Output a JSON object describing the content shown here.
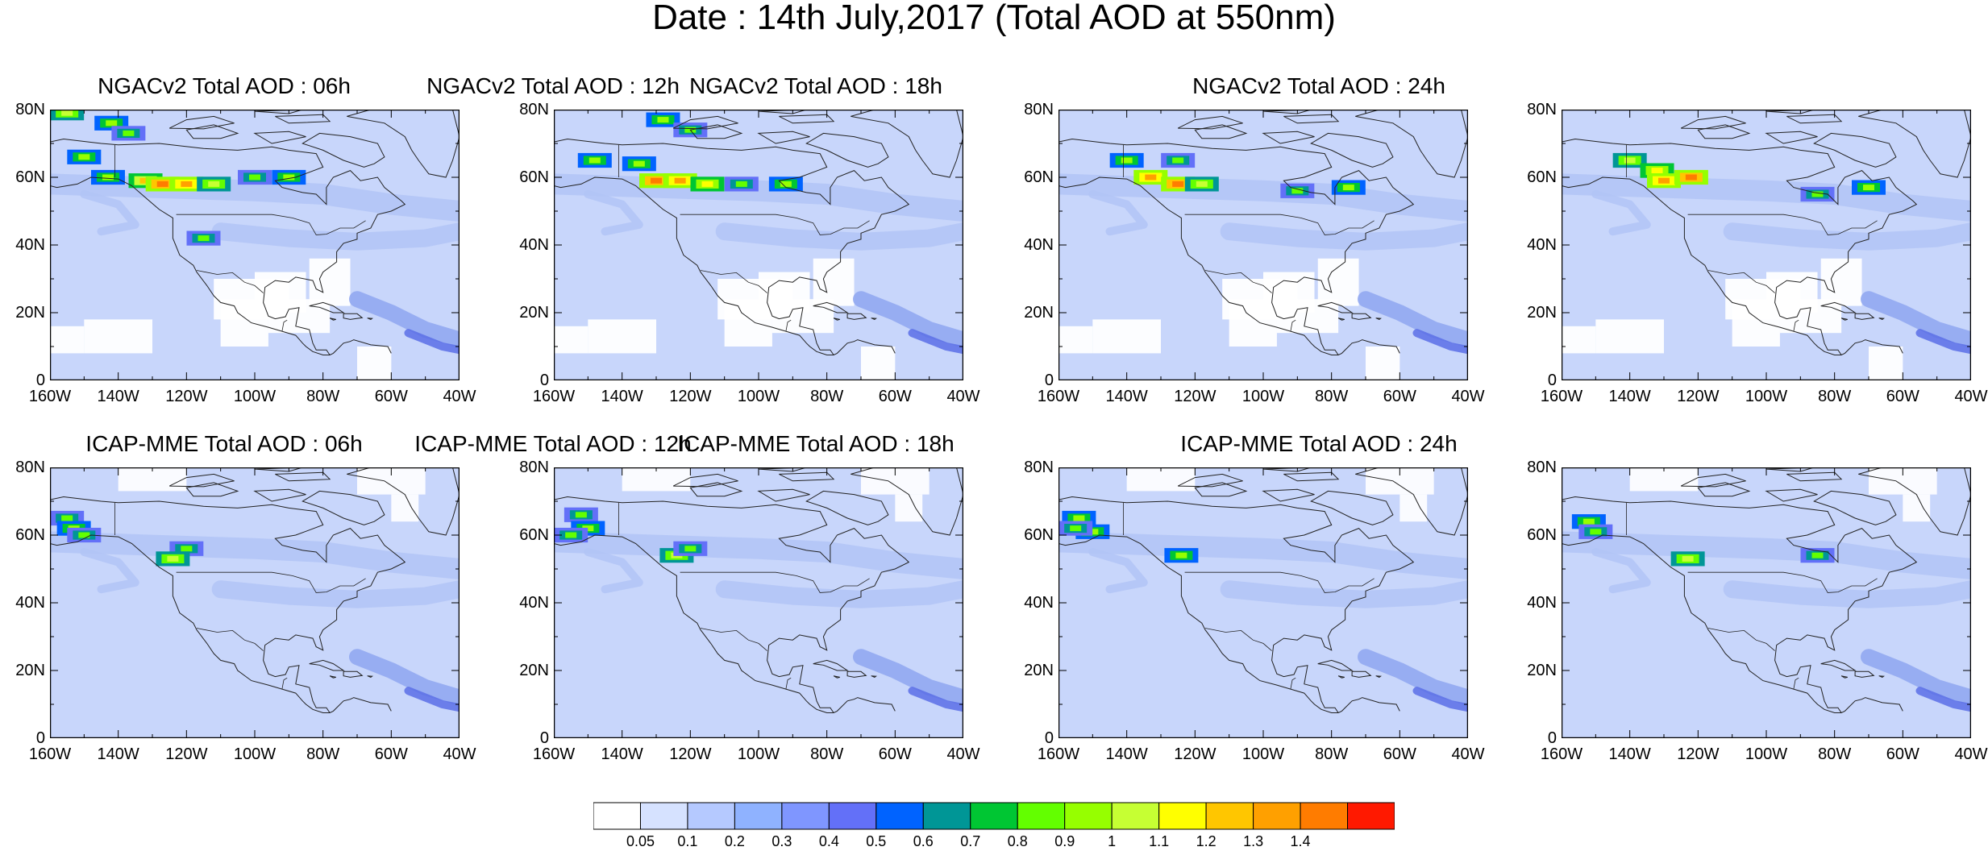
{
  "title": "Date : 14th July,2017 (Total AOD at 550nm)",
  "panels": [
    {
      "title": "NGACv2 Total AOD : 06h",
      "model": "NGACv2",
      "hour": "06h",
      "hotspots": [
        {
          "lon": -155,
          "lat": 79,
          "v": 1.0
        },
        {
          "lon": -142,
          "lat": 76,
          "v": 0.9
        },
        {
          "lon": -137,
          "lat": 73,
          "v": 0.8
        },
        {
          "lon": -150,
          "lat": 66,
          "v": 0.9
        },
        {
          "lon": -143,
          "lat": 60,
          "v": 0.9
        },
        {
          "lon": -132,
          "lat": 59,
          "v": 1.2
        },
        {
          "lon": -127,
          "lat": 58,
          "v": 1.4
        },
        {
          "lon": -120,
          "lat": 58,
          "v": 1.3
        },
        {
          "lon": -112,
          "lat": 58,
          "v": 1.0
        },
        {
          "lon": -100,
          "lat": 60,
          "v": 0.8
        },
        {
          "lon": -90,
          "lat": 60,
          "v": 0.9
        },
        {
          "lon": -115,
          "lat": 42,
          "v": 0.8
        }
      ]
    },
    {
      "title": "NGACv2 Total AOD : 12h",
      "model": "NGACv2",
      "hour": "12h",
      "hotspots": [
        {
          "lon": -128,
          "lat": 77,
          "v": 0.9
        },
        {
          "lon": -120,
          "lat": 74,
          "v": 0.8
        },
        {
          "lon": -148,
          "lat": 65,
          "v": 0.9
        },
        {
          "lon": -135,
          "lat": 64,
          "v": 0.9
        },
        {
          "lon": -130,
          "lat": 59,
          "v": 1.4
        },
        {
          "lon": -123,
          "lat": 59,
          "v": 1.3
        },
        {
          "lon": -115,
          "lat": 58,
          "v": 1.1
        },
        {
          "lon": -105,
          "lat": 58,
          "v": 0.8
        },
        {
          "lon": -92,
          "lat": 58,
          "v": 0.9
        }
      ]
    },
    {
      "title": "NGACv2 Total AOD : 18h",
      "model": "NGACv2",
      "hour": "18h",
      "hotspots": [
        {
          "lon": -140,
          "lat": 65,
          "v": 0.9
        },
        {
          "lon": -125,
          "lat": 65,
          "v": 0.8
        },
        {
          "lon": -133,
          "lat": 60,
          "v": 1.3
        },
        {
          "lon": -125,
          "lat": 58,
          "v": 1.4
        },
        {
          "lon": -118,
          "lat": 58,
          "v": 1.0
        },
        {
          "lon": -90,
          "lat": 56,
          "v": 0.8
        },
        {
          "lon": -75,
          "lat": 57,
          "v": 0.9
        }
      ]
    },
    {
      "title": "NGACv2 Total AOD : 24h",
      "model": "NGACv2",
      "hour": "24h",
      "hotspots": [
        {
          "lon": -140,
          "lat": 65,
          "v": 1.0
        },
        {
          "lon": -132,
          "lat": 62,
          "v": 1.1
        },
        {
          "lon": -130,
          "lat": 59,
          "v": 1.3
        },
        {
          "lon": -122,
          "lat": 60,
          "v": 1.4
        },
        {
          "lon": -85,
          "lat": 55,
          "v": 0.8
        },
        {
          "lon": -70,
          "lat": 57,
          "v": 0.9
        }
      ]
    },
    {
      "title": "ICAP-MME Total AOD : 06h",
      "model": "ICAP-MME",
      "hour": "06h",
      "hotspots": [
        {
          "lon": -155,
          "lat": 65,
          "v": 0.8
        },
        {
          "lon": -153,
          "lat": 62,
          "v": 0.9
        },
        {
          "lon": -150,
          "lat": 60,
          "v": 0.8
        },
        {
          "lon": -120,
          "lat": 56,
          "v": 0.8
        },
        {
          "lon": -124,
          "lat": 53,
          "v": 1.0
        }
      ]
    },
    {
      "title": "ICAP-MME Total AOD : 12h",
      "model": "ICAP-MME",
      "hour": "12h",
      "hotspots": [
        {
          "lon": -152,
          "lat": 66,
          "v": 0.8
        },
        {
          "lon": -150,
          "lat": 62,
          "v": 0.9
        },
        {
          "lon": -155,
          "lat": 60,
          "v": 0.8
        },
        {
          "lon": -124,
          "lat": 54,
          "v": 1.0
        },
        {
          "lon": -120,
          "lat": 56,
          "v": 0.8
        }
      ]
    },
    {
      "title": "ICAP-MME Total AOD : 18h",
      "model": "ICAP-MME",
      "hour": "18h",
      "hotspots": [
        {
          "lon": -154,
          "lat": 65,
          "v": 0.9
        },
        {
          "lon": -150,
          "lat": 61,
          "v": 0.9
        },
        {
          "lon": -155,
          "lat": 62,
          "v": 0.8
        },
        {
          "lon": -124,
          "lat": 54,
          "v": 0.9
        }
      ]
    },
    {
      "title": "ICAP-MME Total AOD : 24h",
      "model": "ICAP-MME",
      "hour": "24h",
      "hotspots": [
        {
          "lon": -152,
          "lat": 64,
          "v": 0.9
        },
        {
          "lon": -150,
          "lat": 61,
          "v": 0.8
        },
        {
          "lon": -123,
          "lat": 53,
          "v": 1.0
        },
        {
          "lon": -85,
          "lat": 54,
          "v": 0.8
        }
      ]
    }
  ],
  "x_ticks": [
    "160W",
    "140W",
    "120W",
    "100W",
    "80W",
    "60W",
    "40W"
  ],
  "y_ticks": [
    "0",
    "20N",
    "40N",
    "60N",
    "80N"
  ],
  "colorbar": {
    "labels": [
      "0.05",
      "0.1",
      "0.2",
      "0.3",
      "0.4",
      "0.5",
      "0.6",
      "0.7",
      "0.8",
      "0.9",
      "1",
      "1.1",
      "1.2",
      "1.3",
      "1.4"
    ],
    "colors": [
      "#ffffff",
      "#d6e2ff",
      "#b5c9ff",
      "#8fb2ff",
      "#7f96ff",
      "#6370f8",
      "#0063ff",
      "#009696",
      "#00c633",
      "#63ff00",
      "#96ff00",
      "#c6ff33",
      "#ffff00",
      "#ffc600",
      "#ffa000",
      "#ff7c00",
      "#ff1900"
    ]
  },
  "map_colors": {
    "background": "#c8d6fb",
    "light_band": "#b2c4f6",
    "mid_band": "#8ea6f0",
    "dark_band": "#5a6fe6",
    "clear_area": "#ffffff",
    "coast": "#222222"
  }
}
